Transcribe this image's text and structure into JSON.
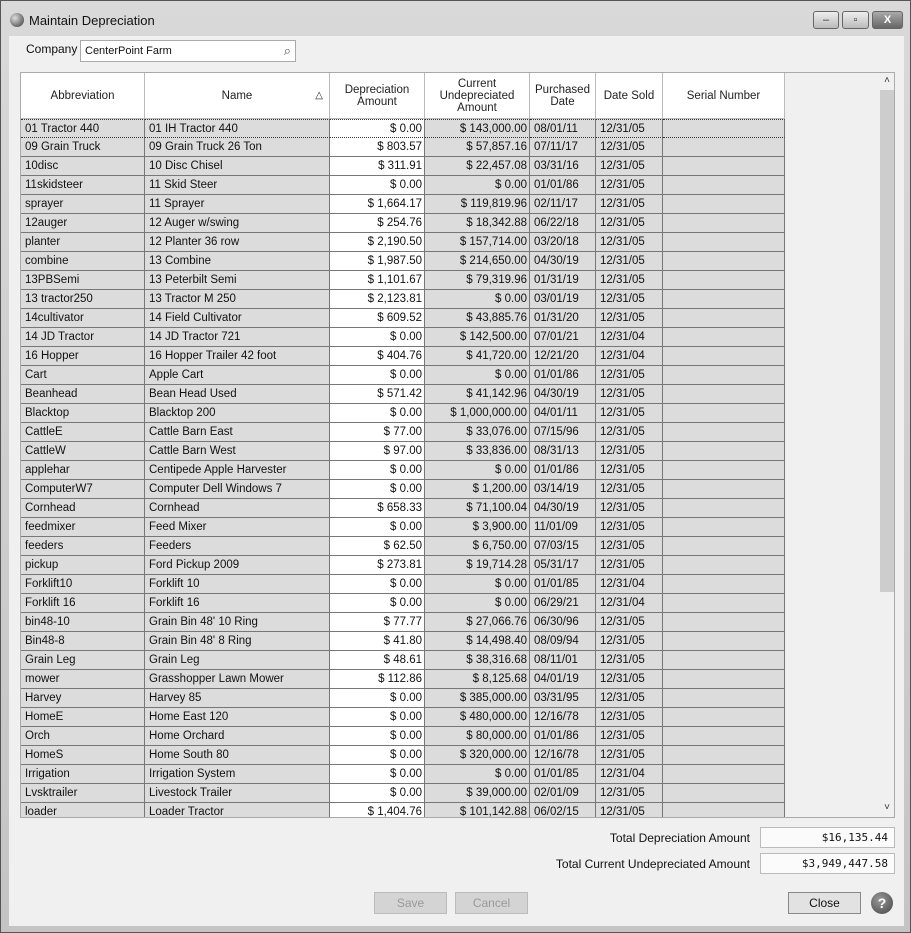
{
  "window": {
    "title": "Maintain Depreciation"
  },
  "company": {
    "label": "Company",
    "value": "CenterPoint Farm"
  },
  "columns": [
    "Abbreviation",
    "Name",
    "Depreciation Amount",
    "Current Undepreciated Amount",
    "Purchased Date",
    "Date Sold",
    "Serial Number"
  ],
  "sort_indicator": "△",
  "rows": [
    [
      "01 Tractor 440",
      "01 IH Tractor 440",
      "$ 0.00",
      "$ 143,000.00",
      "08/01/11",
      "12/31/05",
      ""
    ],
    [
      "09 Grain Truck",
      "09 Grain Truck 26 Ton",
      "$ 803.57",
      "$ 57,857.16",
      "07/11/17",
      "12/31/05",
      ""
    ],
    [
      "10disc",
      "10 Disc Chisel",
      "$ 311.91",
      "$ 22,457.08",
      "03/31/16",
      "12/31/05",
      ""
    ],
    [
      "11skidsteer",
      "11 Skid Steer",
      "$ 0.00",
      "$ 0.00",
      "01/01/86",
      "12/31/05",
      ""
    ],
    [
      "sprayer",
      "11 Sprayer",
      "$ 1,664.17",
      "$ 119,819.96",
      "02/11/17",
      "12/31/05",
      ""
    ],
    [
      "12auger",
      "12 Auger w/swing",
      "$ 254.76",
      "$ 18,342.88",
      "06/22/18",
      "12/31/05",
      ""
    ],
    [
      "planter",
      "12 Planter 36 row",
      "$ 2,190.50",
      "$ 157,714.00",
      "03/20/18",
      "12/31/05",
      ""
    ],
    [
      "combine",
      "13 Combine",
      "$ 1,987.50",
      "$ 214,650.00",
      "04/30/19",
      "12/31/05",
      ""
    ],
    [
      "13PBSemi",
      "13 Peterbilt Semi",
      "$ 1,101.67",
      "$ 79,319.96",
      "01/31/19",
      "12/31/05",
      ""
    ],
    [
      "13 tractor250",
      "13 Tractor M 250",
      "$ 2,123.81",
      "$ 0.00",
      "03/01/19",
      "12/31/05",
      ""
    ],
    [
      "14cultivator",
      "14 Field Cultivator",
      "$ 609.52",
      "$ 43,885.76",
      "01/31/20",
      "12/31/05",
      ""
    ],
    [
      "14 JD Tractor",
      "14 JD Tractor 721",
      "$ 0.00",
      "$ 142,500.00",
      "07/01/21",
      "12/31/04",
      ""
    ],
    [
      "16 Hopper",
      "16 Hopper Trailer 42 foot",
      "$ 404.76",
      "$ 41,720.00",
      "12/21/20",
      "12/31/04",
      ""
    ],
    [
      "Cart",
      "Apple Cart",
      "$ 0.00",
      "$ 0.00",
      "01/01/86",
      "12/31/05",
      ""
    ],
    [
      "Beanhead",
      "Bean Head Used",
      "$ 571.42",
      "$ 41,142.96",
      "04/30/19",
      "12/31/05",
      ""
    ],
    [
      "Blacktop",
      "Blacktop 200",
      "$ 0.00",
      "$ 1,000,000.00",
      "04/01/11",
      "12/31/05",
      ""
    ],
    [
      "CattleE",
      "Cattle Barn East",
      "$ 77.00",
      "$ 33,076.00",
      "07/15/96",
      "12/31/05",
      ""
    ],
    [
      "CattleW",
      "Cattle Barn West",
      "$ 97.00",
      "$ 33,836.00",
      "08/31/13",
      "12/31/05",
      ""
    ],
    [
      "applehar",
      "Centipede Apple Harvester",
      "$ 0.00",
      "$ 0.00",
      "01/01/86",
      "12/31/05",
      ""
    ],
    [
      "ComputerW7",
      "Computer Dell Windows 7",
      "$ 0.00",
      "$ 1,200.00",
      "03/14/19",
      "12/31/05",
      ""
    ],
    [
      "Cornhead",
      "Cornhead",
      "$ 658.33",
      "$ 71,100.04",
      "04/30/19",
      "12/31/05",
      ""
    ],
    [
      "feedmixer",
      "Feed Mixer",
      "$ 0.00",
      "$ 3,900.00",
      "11/01/09",
      "12/31/05",
      ""
    ],
    [
      "feeders",
      "Feeders",
      "$ 62.50",
      "$ 6,750.00",
      "07/03/15",
      "12/31/05",
      ""
    ],
    [
      "pickup",
      "Ford Pickup 2009",
      "$ 273.81",
      "$ 19,714.28",
      "05/31/17",
      "12/31/05",
      ""
    ],
    [
      "Forklift10",
      "Forklift 10",
      "$ 0.00",
      "$ 0.00",
      "01/01/85",
      "12/31/04",
      ""
    ],
    [
      "Forklift 16",
      "Forklift 16",
      "$ 0.00",
      "$ 0.00",
      "06/29/21",
      "12/31/04",
      ""
    ],
    [
      "bin48-10",
      "Grain Bin 48' 10 Ring",
      "$ 77.77",
      "$ 27,066.76",
      "06/30/96",
      "12/31/05",
      ""
    ],
    [
      "Bin48-8",
      "Grain Bin 48' 8 Ring",
      "$ 41.80",
      "$ 14,498.40",
      "08/09/94",
      "12/31/05",
      ""
    ],
    [
      "Grain Leg",
      "Grain Leg",
      "$ 48.61",
      "$ 38,316.68",
      "08/11/01",
      "12/31/05",
      ""
    ],
    [
      "mower",
      "Grasshopper Lawn Mower",
      "$ 112.86",
      "$ 8,125.68",
      "04/01/19",
      "12/31/05",
      ""
    ],
    [
      "Harvey",
      "Harvey 85",
      "$ 0.00",
      "$ 385,000.00",
      "03/31/95",
      "12/31/05",
      ""
    ],
    [
      "HomeE",
      "Home East 120",
      "$ 0.00",
      "$ 480,000.00",
      "12/16/78",
      "12/31/05",
      ""
    ],
    [
      "Orch",
      "Home Orchard",
      "$ 0.00",
      "$ 80,000.00",
      "01/01/86",
      "12/31/05",
      ""
    ],
    [
      "HomeS",
      "Home South 80",
      "$ 0.00",
      "$ 320,000.00",
      "12/16/78",
      "12/31/05",
      ""
    ],
    [
      "Irrigation",
      "Irrigation System",
      "$ 0.00",
      "$ 0.00",
      "01/01/85",
      "12/31/04",
      ""
    ],
    [
      "Lvsktrailer",
      "Livestock Trailer",
      "$ 0.00",
      "$ 39,000.00",
      "02/01/09",
      "12/31/05",
      ""
    ],
    [
      "loader",
      "Loader Tractor",
      "$ 1,404.76",
      "$ 101,142.88",
      "06/02/15",
      "12/31/05",
      ""
    ]
  ],
  "totals": {
    "depreciation_label": "Total Depreciation Amount",
    "depreciation_value": "$16,135.44",
    "undepreciated_label": "Total Current Undepreciated Amount",
    "undepreciated_value": "$3,949,447.58"
  },
  "buttons": {
    "save": "Save",
    "cancel": "Cancel",
    "close": "Close",
    "help": "?"
  },
  "window_buttons": {
    "minimize": "–",
    "maximize": "▫",
    "close": "X"
  },
  "scroll": {
    "up": "˄",
    "down": "˅",
    "position_fraction": 0.0
  }
}
